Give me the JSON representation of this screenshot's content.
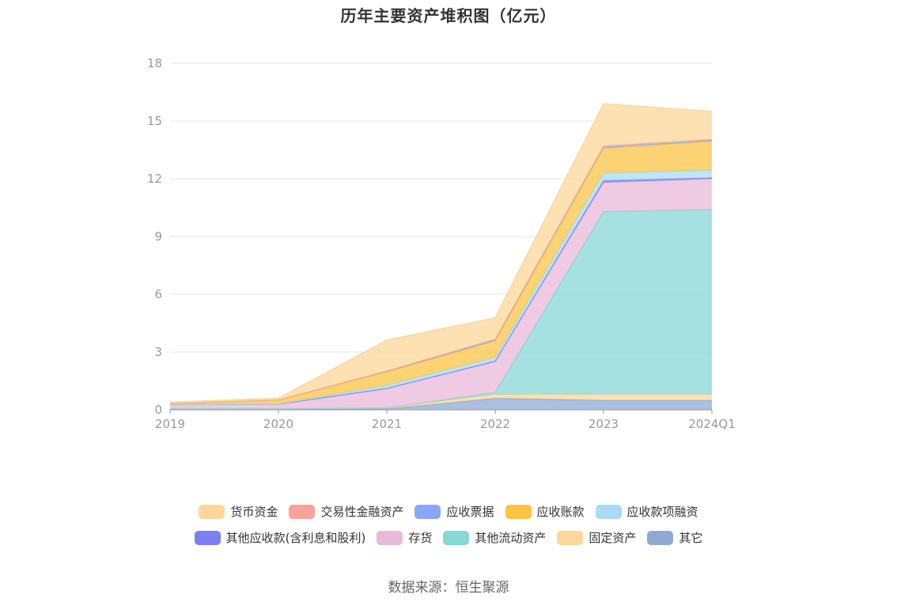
{
  "title": "历年主要资产堆积图（亿元）",
  "source": "数据来源：恒生聚源",
  "chart_data": {
    "type": "area",
    "stacked": true,
    "categories": [
      "2019",
      "2020",
      "2021",
      "2022",
      "2023",
      "2024Q1"
    ],
    "ylim": [
      0,
      18
    ],
    "yticks": [
      0,
      3,
      6,
      9,
      12,
      15,
      18
    ],
    "grid": true,
    "legend_position": "bottom",
    "series": [
      {
        "name": "其它",
        "color": "#8fa9d6",
        "values": [
          0.05,
          0.05,
          0.05,
          0.6,
          0.5,
          0.5
        ]
      },
      {
        "name": "固定资产",
        "color": "#fdd79a",
        "values": [
          0.01,
          0.01,
          0.05,
          0.2,
          0.3,
          0.3
        ]
      },
      {
        "name": "其他流动资产",
        "color": "#86d7d6",
        "values": [
          0.0,
          0.0,
          0.0,
          0.1,
          9.5,
          9.6
        ]
      },
      {
        "name": "存货",
        "color": "#e8b9d9",
        "values": [
          0.2,
          0.22,
          1.0,
          1.6,
          1.5,
          1.6
        ]
      },
      {
        "name": "其他应收款(含利息和股利)",
        "color": "#7b7ff0",
        "values": [
          0.01,
          0.02,
          0.02,
          0.03,
          0.1,
          0.05
        ]
      },
      {
        "name": "应收款项融资",
        "color": "#a8dcf6",
        "values": [
          0.0,
          0.01,
          0.15,
          0.2,
          0.4,
          0.4
        ]
      },
      {
        "name": "应收账款",
        "color": "#fbc443",
        "values": [
          0.05,
          0.2,
          0.7,
          0.85,
          1.3,
          1.5
        ]
      },
      {
        "name": "应收票据",
        "color": "#8aa7f7",
        "values": [
          0.01,
          0.01,
          0.05,
          0.1,
          0.1,
          0.1
        ]
      },
      {
        "name": "交易性金融资产",
        "color": "#f7a399",
        "values": [
          0.0,
          0.0,
          0.0,
          0.0,
          0.0,
          0.0
        ]
      },
      {
        "name": "货币资金",
        "color": "#fdd79a",
        "values": [
          0.07,
          0.08,
          1.6,
          1.1,
          2.2,
          1.45
        ]
      }
    ]
  },
  "legend_rows": [
    [
      {
        "name": "货币资金",
        "color": "#fdd79a"
      },
      {
        "name": "交易性金融资产",
        "color": "#f7a399"
      },
      {
        "name": "应收票据",
        "color": "#8aa7f7"
      },
      {
        "name": "应收账款",
        "color": "#fbc443"
      },
      {
        "name": "应收款项融资",
        "color": "#a8dcf6"
      }
    ],
    [
      {
        "name": "其他应收款(含利息和股利)",
        "color": "#7b7ff0"
      },
      {
        "name": "存货",
        "color": "#e8b9d9"
      },
      {
        "name": "其他流动资产",
        "color": "#86d7d6"
      },
      {
        "name": "固定资产",
        "color": "#fdd79a"
      },
      {
        "name": "其它",
        "color": "#8fa9d6"
      }
    ]
  ]
}
